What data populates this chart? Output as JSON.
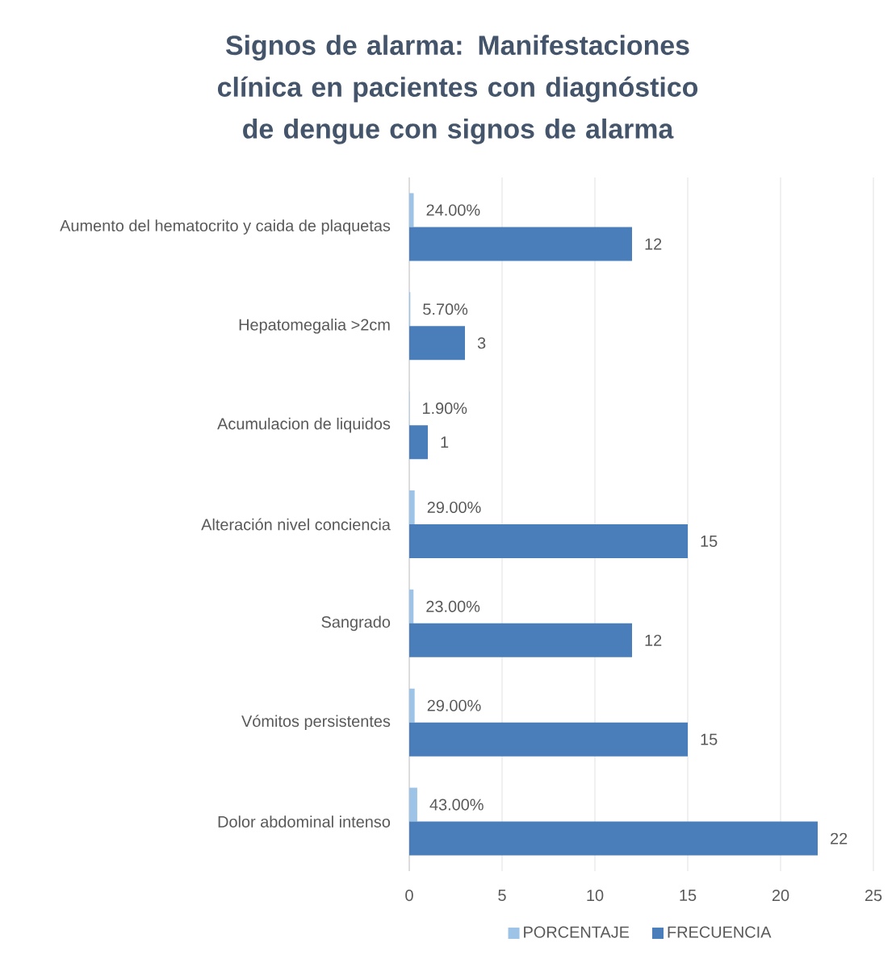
{
  "chart_data": {
    "type": "bar",
    "orientation": "horizontal",
    "title": "Signos de alarma: Manifestaciones clínica en pacientes con diagnóstico de dengue con signos de alarma",
    "categories": [
      "Aumento del hematocrito y caida de plaquetas",
      "Hepatomegalia  >2cm",
      "Acumulacion de liquidos",
      "Alteración nivel conciencia",
      "Sangrado",
      "Vómitos persistentes",
      "Dolor abdominal intenso"
    ],
    "series": [
      {
        "name": "PORCENTAJE",
        "color": "#9dc3e6",
        "values": [
          0.24,
          0.057,
          0.019,
          0.29,
          0.23,
          0.29,
          0.43
        ],
        "value_labels": [
          "24.00%",
          "5.70%",
          "1.90%",
          "29.00%",
          "23.00%",
          "29.00%",
          "43.00%"
        ]
      },
      {
        "name": "FRECUENCIA",
        "color": "#4a7ebb",
        "values": [
          12,
          3,
          1,
          15,
          12,
          15,
          22
        ],
        "value_labels": [
          "12",
          "3",
          "1",
          "15",
          "12",
          "15",
          "22"
        ]
      }
    ],
    "xlim": [
      0,
      25
    ],
    "xticks": [
      0,
      5,
      10,
      15,
      20,
      25
    ],
    "grid": "x",
    "legend": "bottom"
  }
}
